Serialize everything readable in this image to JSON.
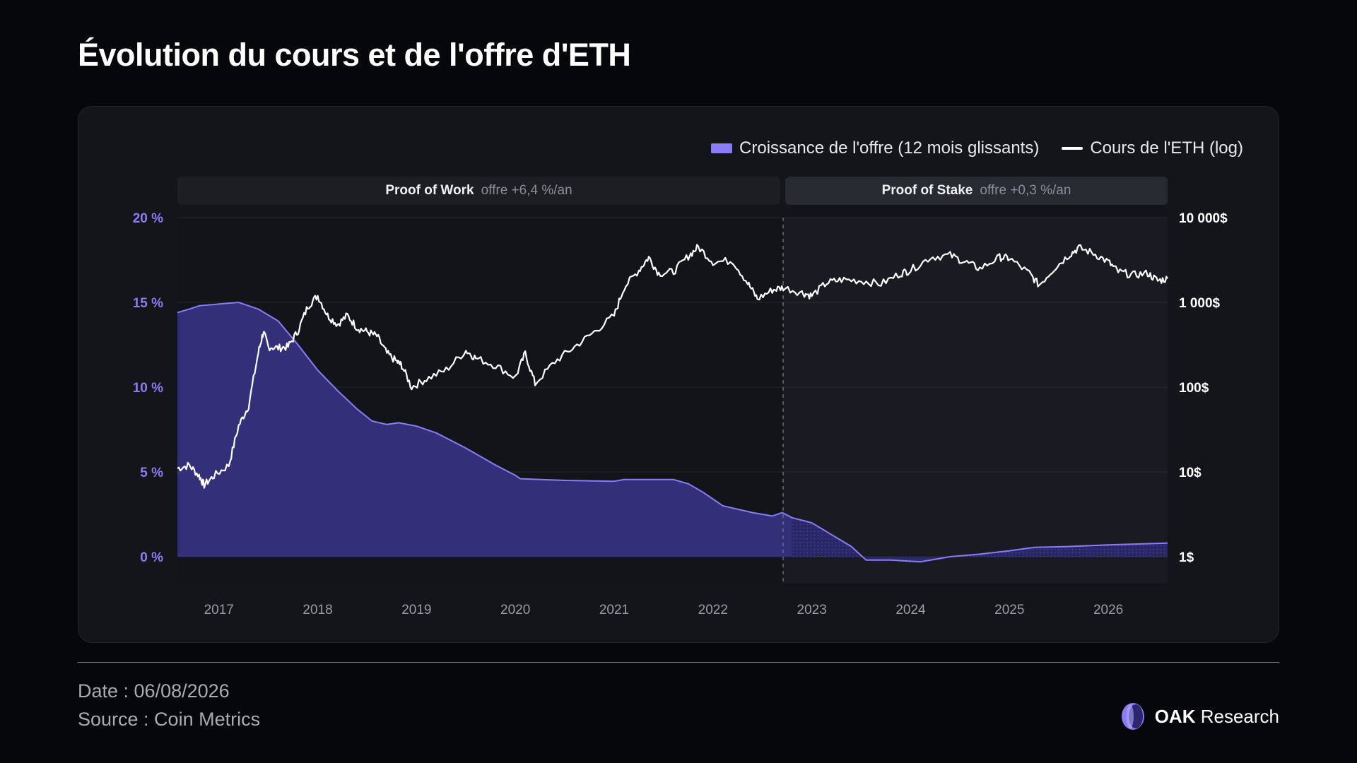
{
  "title": "Évolution du cours et de l'offre d'ETH",
  "legend": {
    "supply_label": "Croissance de l'offre (12 mois glissants)",
    "price_label": "Cours de l'ETH (log)"
  },
  "phases": {
    "pow": {
      "name": "Proof of Work",
      "note": "offre +6,4 %/an"
    },
    "pos": {
      "name": "Proof of Stake",
      "note": "offre +0,3 %/an"
    }
  },
  "footer": {
    "date": "Date : 06/08/2026",
    "source": "Source : Coin Metrics",
    "brand_bold": "OAK",
    "brand_rest": "Research"
  },
  "colors": {
    "supply_fill": "#332f78",
    "supply_line": "#8a7cf6",
    "price_line": "#ffffff",
    "left_axis_text": "#8a7cf6",
    "right_axis_text": "#ffffff"
  },
  "chart_data": {
    "type": "area+line",
    "x_ticks": [
      "2017",
      "2018",
      "2019",
      "2020",
      "2021",
      "2022",
      "2023",
      "2024",
      "2025",
      "2026"
    ],
    "x_range": [
      2016.58,
      2026.6
    ],
    "merge_date": 2022.71,
    "left_axis": {
      "ticks": [
        "0 %",
        "5 %",
        "10 %",
        "15 %",
        "20 %"
      ],
      "range": [
        0,
        20
      ]
    },
    "right_axis": {
      "scale": "log",
      "ticks": [
        "1$",
        "10$",
        "100$",
        "1 000$",
        "10 000$"
      ],
      "range": [
        1,
        10000
      ]
    },
    "series": [
      {
        "name": "Croissance de l'offre (12 mois glissants)",
        "axis": "left",
        "kind": "area",
        "points": [
          [
            2016.58,
            14.4
          ],
          [
            2016.7,
            14.6
          ],
          [
            2016.8,
            14.8
          ],
          [
            2017.0,
            14.9
          ],
          [
            2017.2,
            15.0
          ],
          [
            2017.4,
            14.6
          ],
          [
            2017.6,
            13.9
          ],
          [
            2017.8,
            12.5
          ],
          [
            2018.0,
            11.0
          ],
          [
            2018.2,
            9.8
          ],
          [
            2018.4,
            8.7
          ],
          [
            2018.55,
            8.0
          ],
          [
            2018.7,
            7.8
          ],
          [
            2018.82,
            7.9
          ],
          [
            2019.0,
            7.7
          ],
          [
            2019.2,
            7.3
          ],
          [
            2019.5,
            6.4
          ],
          [
            2019.8,
            5.4
          ],
          [
            2020.0,
            4.8
          ],
          [
            2020.05,
            4.6
          ],
          [
            2020.5,
            4.5
          ],
          [
            2021.0,
            4.45
          ],
          [
            2021.1,
            4.55
          ],
          [
            2021.5,
            4.55
          ],
          [
            2021.6,
            4.55
          ],
          [
            2021.75,
            4.3
          ],
          [
            2021.9,
            3.8
          ],
          [
            2022.1,
            3.0
          ],
          [
            2022.4,
            2.6
          ],
          [
            2022.6,
            2.4
          ],
          [
            2022.7,
            2.6
          ],
          [
            2022.8,
            2.3
          ],
          [
            2023.0,
            2.0
          ],
          [
            2023.2,
            1.3
          ],
          [
            2023.4,
            0.6
          ],
          [
            2023.55,
            -0.2
          ],
          [
            2023.8,
            -0.2
          ],
          [
            2024.1,
            -0.3
          ],
          [
            2024.4,
            0.0
          ],
          [
            2024.7,
            0.15
          ],
          [
            2025.0,
            0.35
          ],
          [
            2025.25,
            0.55
          ],
          [
            2025.6,
            0.6
          ],
          [
            2026.0,
            0.7
          ],
          [
            2026.6,
            0.8
          ]
        ]
      },
      {
        "name": "Cours de l'ETH (log)",
        "axis": "right",
        "kind": "line",
        "points": [
          [
            2016.58,
            11
          ],
          [
            2016.7,
            12
          ],
          [
            2016.8,
            9
          ],
          [
            2016.85,
            7
          ],
          [
            2016.95,
            9
          ],
          [
            2017.1,
            12
          ],
          [
            2017.2,
            35
          ],
          [
            2017.3,
            60
          ],
          [
            2017.4,
            260
          ],
          [
            2017.45,
            450
          ],
          [
            2017.5,
            300
          ],
          [
            2017.6,
            290
          ],
          [
            2017.7,
            300
          ],
          [
            2017.8,
            460
          ],
          [
            2017.9,
            900
          ],
          [
            2018.0,
            1200
          ],
          [
            2018.1,
            700
          ],
          [
            2018.2,
            550
          ],
          [
            2018.3,
            700
          ],
          [
            2018.4,
            500
          ],
          [
            2018.5,
            450
          ],
          [
            2018.6,
            400
          ],
          [
            2018.7,
            250
          ],
          [
            2018.8,
            200
          ],
          [
            2018.85,
            180
          ],
          [
            2018.95,
            100
          ],
          [
            2019.1,
            125
          ],
          [
            2019.3,
            160
          ],
          [
            2019.5,
            270
          ],
          [
            2019.6,
            220
          ],
          [
            2019.8,
            180
          ],
          [
            2020.0,
            130
          ],
          [
            2020.1,
            250
          ],
          [
            2020.2,
            110
          ],
          [
            2020.4,
            200
          ],
          [
            2020.6,
            300
          ],
          [
            2020.8,
            450
          ],
          [
            2021.0,
            700
          ],
          [
            2021.1,
            1500
          ],
          [
            2021.25,
            2400
          ],
          [
            2021.35,
            3400
          ],
          [
            2021.45,
            2200
          ],
          [
            2021.6,
            2300
          ],
          [
            2021.75,
            3500
          ],
          [
            2021.85,
            4500
          ],
          [
            2022.0,
            3000
          ],
          [
            2022.2,
            3100
          ],
          [
            2022.35,
            1700
          ],
          [
            2022.45,
            1100
          ],
          [
            2022.6,
            1400
          ],
          [
            2022.71,
            1500
          ],
          [
            2022.9,
            1300
          ],
          [
            2023.0,
            1200
          ],
          [
            2023.15,
            1700
          ],
          [
            2023.3,
            1850
          ],
          [
            2023.5,
            1800
          ],
          [
            2023.7,
            1650
          ],
          [
            2023.9,
            2200
          ],
          [
            2024.0,
            2400
          ],
          [
            2024.2,
            3400
          ],
          [
            2024.4,
            3600
          ],
          [
            2024.55,
            3000
          ],
          [
            2024.7,
            2500
          ],
          [
            2024.9,
            3400
          ],
          [
            2025.0,
            3300
          ],
          [
            2025.2,
            2200
          ],
          [
            2025.3,
            1600
          ],
          [
            2025.45,
            2500
          ],
          [
            2025.6,
            3600
          ],
          [
            2025.7,
            4400
          ],
          [
            2025.85,
            3800
          ],
          [
            2026.0,
            3000
          ],
          [
            2026.1,
            2300
          ],
          [
            2026.25,
            2100
          ],
          [
            2026.4,
            2200
          ],
          [
            2026.5,
            1800
          ],
          [
            2026.6,
            1900
          ]
        ]
      }
    ]
  }
}
